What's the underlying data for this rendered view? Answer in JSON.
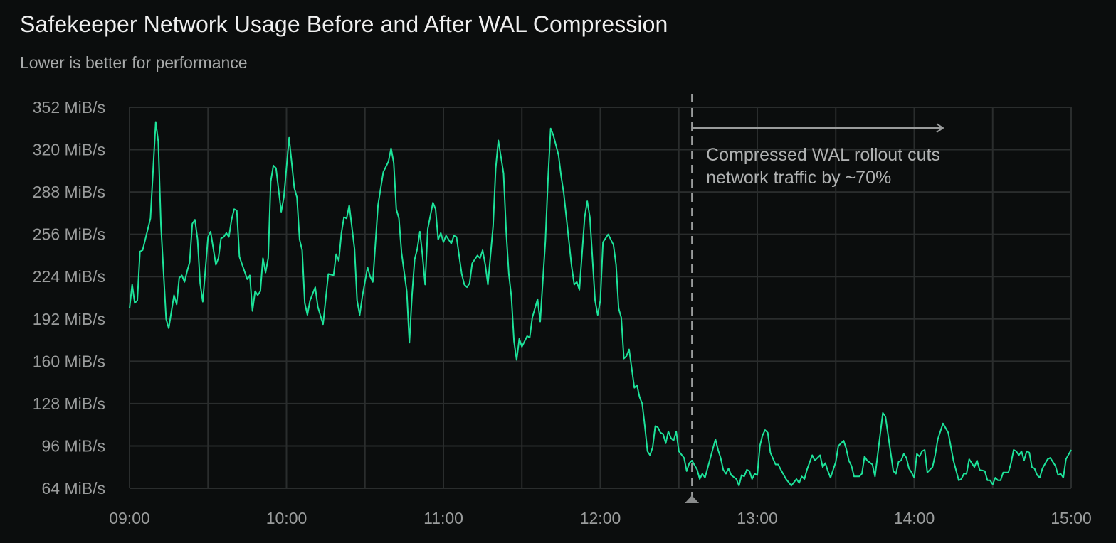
{
  "chart_data": {
    "type": "line",
    "title": "Safekeeper Network Usage Before and After WAL Compression",
    "subtitle": "Lower is better for performance",
    "xlabel": "",
    "ylabel": "",
    "x_ticks": [
      "09:00",
      "10:00",
      "11:00",
      "12:00",
      "13:00",
      "14:00",
      "15:00"
    ],
    "y_ticks": [
      "64 MiB/s",
      "96 MiB/s",
      "128 MiB/s",
      "160 MiB/s",
      "192 MiB/s",
      "224 MiB/s",
      "256 MiB/s",
      "288 MiB/s",
      "320 MiB/s",
      "352 MiB/s"
    ],
    "y_tick_values": [
      64,
      96,
      128,
      160,
      192,
      224,
      256,
      288,
      320,
      352
    ],
    "xlim": [
      "09:00",
      "15:00"
    ],
    "ylim": [
      64,
      352
    ],
    "y_unit": "MiB/s",
    "grid": true,
    "colors": {
      "line": "#1de39a",
      "background": "#0b0d0d",
      "grid": "#2a2d2d",
      "annotation": "#9a9c9c"
    },
    "annotation": {
      "marker_time": "12:35",
      "arrow_end_time": "14:11",
      "lines": [
        "Compressed WAL rollout cuts",
        "network traffic by ~70%"
      ]
    },
    "series": [
      {
        "points": [
          [
            "09:00",
            200
          ],
          [
            "09:01",
            218
          ],
          [
            "09:02",
            204
          ],
          [
            "09:03",
            206
          ],
          [
            "09:04",
            243
          ],
          [
            "09:05",
            244
          ],
          [
            "09:08",
            268
          ],
          [
            "09:10",
            341
          ],
          [
            "09:11",
            326
          ],
          [
            "09:12",
            263
          ],
          [
            "09:14",
            192
          ],
          [
            "09:15",
            185
          ],
          [
            "09:17",
            210
          ],
          [
            "09:18",
            203
          ],
          [
            "09:19",
            223
          ],
          [
            "09:20",
            225
          ],
          [
            "09:21",
            220
          ],
          [
            "09:22",
            228
          ],
          [
            "09:23",
            235
          ],
          [
            "09:24",
            264
          ],
          [
            "09:25",
            267
          ],
          [
            "09:26",
            252
          ],
          [
            "09:27",
            219
          ],
          [
            "09:28",
            205
          ],
          [
            "09:30",
            254
          ],
          [
            "09:31",
            258
          ],
          [
            "09:33",
            233
          ],
          [
            "09:34",
            238
          ],
          [
            "09:35",
            253
          ],
          [
            "09:36",
            254
          ],
          [
            "09:37",
            257
          ],
          [
            "09:38",
            254
          ],
          [
            "09:39",
            267
          ],
          [
            "09:40",
            275
          ],
          [
            "09:41",
            274
          ],
          [
            "09:42",
            239
          ],
          [
            "09:45",
            222
          ],
          [
            "09:46",
            225
          ],
          [
            "09:47",
            198
          ],
          [
            "09:48",
            213
          ],
          [
            "09:49",
            210
          ],
          [
            "09:50",
            213
          ],
          [
            "09:51",
            238
          ],
          [
            "09:52",
            227
          ],
          [
            "09:53",
            238
          ],
          [
            "09:54",
            296
          ],
          [
            "09:55",
            308
          ],
          [
            "09:56",
            306
          ],
          [
            "09:58",
            273
          ],
          [
            "09:59",
            284
          ],
          [
            "10:01",
            329
          ],
          [
            "10:03",
            291
          ],
          [
            "10:04",
            284
          ],
          [
            "10:05",
            252
          ],
          [
            "10:06",
            244
          ],
          [
            "10:07",
            204
          ],
          [
            "10:08",
            195
          ],
          [
            "10:09",
            206
          ],
          [
            "10:11",
            216
          ],
          [
            "10:12",
            201
          ],
          [
            "10:14",
            188
          ],
          [
            "10:16",
            226
          ],
          [
            "10:18",
            225
          ],
          [
            "10:19",
            241
          ],
          [
            "10:20",
            236
          ],
          [
            "10:21",
            257
          ],
          [
            "10:22",
            269
          ],
          [
            "10:23",
            268
          ],
          [
            "10:24",
            278
          ],
          [
            "10:26",
            245
          ],
          [
            "10:27",
            206
          ],
          [
            "10:28",
            195
          ],
          [
            "10:29",
            209
          ],
          [
            "10:31",
            231
          ],
          [
            "10:32",
            224
          ],
          [
            "10:33",
            220
          ],
          [
            "10:35",
            278
          ],
          [
            "10:37",
            303
          ],
          [
            "10:39",
            311
          ],
          [
            "10:40",
            321
          ],
          [
            "10:41",
            310
          ],
          [
            "10:42",
            275
          ],
          [
            "10:43",
            268
          ],
          [
            "10:44",
            242
          ],
          [
            "10:46",
            213
          ],
          [
            "10:47",
            174
          ],
          [
            "10:48",
            210
          ],
          [
            "10:49",
            237
          ],
          [
            "10:50",
            245
          ],
          [
            "10:51",
            258
          ],
          [
            "10:52",
            240
          ],
          [
            "10:53",
            218
          ],
          [
            "10:54",
            260
          ],
          [
            "10:56",
            280
          ],
          [
            "10:57",
            275
          ],
          [
            "10:58",
            252
          ],
          [
            "10:59",
            257
          ],
          [
            "11:00",
            250
          ],
          [
            "11:01",
            255
          ],
          [
            "11:03",
            249
          ],
          [
            "11:04",
            255
          ],
          [
            "11:05",
            254
          ],
          [
            "11:07",
            226
          ],
          [
            "11:08",
            218
          ],
          [
            "11:09",
            216
          ],
          [
            "11:10",
            219
          ],
          [
            "11:11",
            234
          ],
          [
            "11:13",
            240
          ],
          [
            "11:14",
            238
          ],
          [
            "11:15",
            244
          ],
          [
            "11:16",
            233
          ],
          [
            "11:17",
            218
          ],
          [
            "11:19",
            262
          ],
          [
            "11:20",
            306
          ],
          [
            "11:21",
            327
          ],
          [
            "11:23",
            302
          ],
          [
            "11:24",
            258
          ],
          [
            "11:25",
            226
          ],
          [
            "11:26",
            209
          ],
          [
            "11:27",
            175
          ],
          [
            "11:28",
            161
          ],
          [
            "11:29",
            177
          ],
          [
            "11:30",
            171
          ],
          [
            "11:32",
            179
          ],
          [
            "11:33",
            178
          ],
          [
            "11:34",
            193
          ],
          [
            "11:36",
            207
          ],
          [
            "11:37",
            190
          ],
          [
            "11:39",
            251
          ],
          [
            "11:40",
            298
          ],
          [
            "11:41",
            336
          ],
          [
            "11:42",
            331
          ],
          [
            "11:44",
            316
          ],
          [
            "11:45",
            300
          ],
          [
            "11:46",
            287
          ],
          [
            "11:49",
            232
          ],
          [
            "11:50",
            218
          ],
          [
            "11:51",
            220
          ],
          [
            "11:52",
            214
          ],
          [
            "11:54",
            269
          ],
          [
            "11:55",
            281
          ],
          [
            "11:56",
            269
          ],
          [
            "11:58",
            206
          ],
          [
            "11:59",
            195
          ],
          [
            "12:00",
            206
          ],
          [
            "12:01",
            250
          ],
          [
            "12:03",
            256
          ],
          [
            "12:05",
            248
          ],
          [
            "12:06",
            233
          ],
          [
            "12:07",
            200
          ],
          [
            "12:08",
            193
          ],
          [
            "12:09",
            162
          ],
          [
            "12:10",
            164
          ],
          [
            "12:11",
            169
          ],
          [
            "12:13",
            140
          ],
          [
            "12:14",
            142
          ],
          [
            "12:15",
            133
          ],
          [
            "12:16",
            128
          ],
          [
            "12:17",
            111
          ],
          [
            "12:18",
            92
          ],
          [
            "12:19",
            89
          ],
          [
            "12:20",
            95
          ],
          [
            "12:21",
            111
          ],
          [
            "12:22",
            110
          ],
          [
            "12:23",
            106
          ],
          [
            "12:24",
            105
          ],
          [
            "12:25",
            98
          ],
          [
            "12:26",
            107
          ],
          [
            "12:27",
            102
          ],
          [
            "12:28",
            100
          ],
          [
            "12:29",
            107
          ],
          [
            "12:30",
            92
          ],
          [
            "12:32",
            87
          ],
          [
            "12:33",
            77
          ],
          [
            "12:34",
            83
          ],
          [
            "12:35",
            85
          ],
          [
            "12:37",
            78
          ],
          [
            "12:38",
            71
          ],
          [
            "12:39",
            75
          ],
          [
            "12:40",
            72
          ],
          [
            "12:44",
            101
          ],
          [
            "12:45",
            93
          ],
          [
            "12:46",
            87
          ],
          [
            "12:47",
            78
          ],
          [
            "12:48",
            75
          ],
          [
            "12:49",
            79
          ],
          [
            "12:50",
            74
          ],
          [
            "12:52",
            71
          ],
          [
            "12:53",
            66
          ],
          [
            "12:54",
            74
          ],
          [
            "12:55",
            73
          ],
          [
            "12:56",
            78
          ],
          [
            "12:57",
            77
          ],
          [
            "12:58",
            71
          ],
          [
            "12:59",
            75
          ],
          [
            "13:00",
            74
          ],
          [
            "13:01",
            96
          ],
          [
            "13:02",
            104
          ],
          [
            "13:03",
            108
          ],
          [
            "13:04",
            106
          ],
          [
            "13:05",
            91
          ],
          [
            "13:07",
            82
          ],
          [
            "13:08",
            82
          ],
          [
            "13:09",
            78
          ],
          [
            "13:11",
            71
          ],
          [
            "13:13",
            66
          ],
          [
            "13:15",
            71
          ],
          [
            "13:16",
            68
          ],
          [
            "13:17",
            73
          ],
          [
            "13:18",
            71
          ],
          [
            "13:19",
            78
          ],
          [
            "13:21",
            89
          ],
          [
            "13:22",
            85
          ],
          [
            "13:24",
            89
          ],
          [
            "13:25",
            80
          ],
          [
            "13:26",
            83
          ],
          [
            "13:27",
            77
          ],
          [
            "13:28",
            72
          ],
          [
            "13:30",
            84
          ],
          [
            "13:31",
            96
          ],
          [
            "13:33",
            100
          ],
          [
            "13:34",
            94
          ],
          [
            "13:35",
            85
          ],
          [
            "13:36",
            81
          ],
          [
            "13:37",
            73
          ],
          [
            "13:39",
            73
          ],
          [
            "13:40",
            75
          ],
          [
            "13:41",
            88
          ],
          [
            "13:42",
            85
          ],
          [
            "13:44",
            82
          ],
          [
            "13:45",
            73
          ],
          [
            "13:48",
            121
          ],
          [
            "13:49",
            118
          ],
          [
            "13:52",
            77
          ],
          [
            "13:53",
            75
          ],
          [
            "13:54",
            84
          ],
          [
            "13:55",
            85
          ],
          [
            "13:56",
            90
          ],
          [
            "13:57",
            87
          ],
          [
            "13:58",
            79
          ],
          [
            "13:59",
            76
          ],
          [
            "14:00",
            72
          ],
          [
            "14:01",
            90
          ],
          [
            "14:02",
            88
          ],
          [
            "14:03",
            92
          ],
          [
            "14:04",
            93
          ],
          [
            "14:05",
            76
          ],
          [
            "14:07",
            80
          ],
          [
            "14:08",
            89
          ],
          [
            "14:09",
            101
          ],
          [
            "14:11",
            113
          ],
          [
            "14:13",
            106
          ],
          [
            "14:15",
            85
          ],
          [
            "14:17",
            70
          ],
          [
            "14:18",
            71
          ],
          [
            "14:19",
            75
          ],
          [
            "14:20",
            75
          ],
          [
            "14:21",
            86
          ],
          [
            "14:23",
            80
          ],
          [
            "14:24",
            85
          ],
          [
            "14:25",
            78
          ],
          [
            "14:27",
            77
          ],
          [
            "14:28",
            70
          ],
          [
            "14:29",
            70
          ],
          [
            "14:30",
            67
          ],
          [
            "14:31",
            72
          ],
          [
            "14:32",
            70
          ],
          [
            "14:33",
            70
          ],
          [
            "14:34",
            76
          ],
          [
            "14:36",
            76
          ],
          [
            "14:37",
            83
          ],
          [
            "14:38",
            93
          ],
          [
            "14:39",
            92
          ],
          [
            "14:40",
            89
          ],
          [
            "14:41",
            92
          ],
          [
            "14:42",
            85
          ],
          [
            "14:43",
            92
          ],
          [
            "14:44",
            91
          ],
          [
            "14:45",
            80
          ],
          [
            "14:46",
            79
          ],
          [
            "14:47",
            74
          ],
          [
            "14:48",
            72
          ],
          [
            "14:49",
            79
          ],
          [
            "14:51",
            86
          ],
          [
            "14:52",
            87
          ],
          [
            "14:54",
            81
          ],
          [
            "14:55",
            74
          ],
          [
            "14:56",
            75
          ],
          [
            "14:57",
            72
          ],
          [
            "14:58",
            86
          ],
          [
            "15:00",
            93
          ]
        ]
      }
    ]
  }
}
